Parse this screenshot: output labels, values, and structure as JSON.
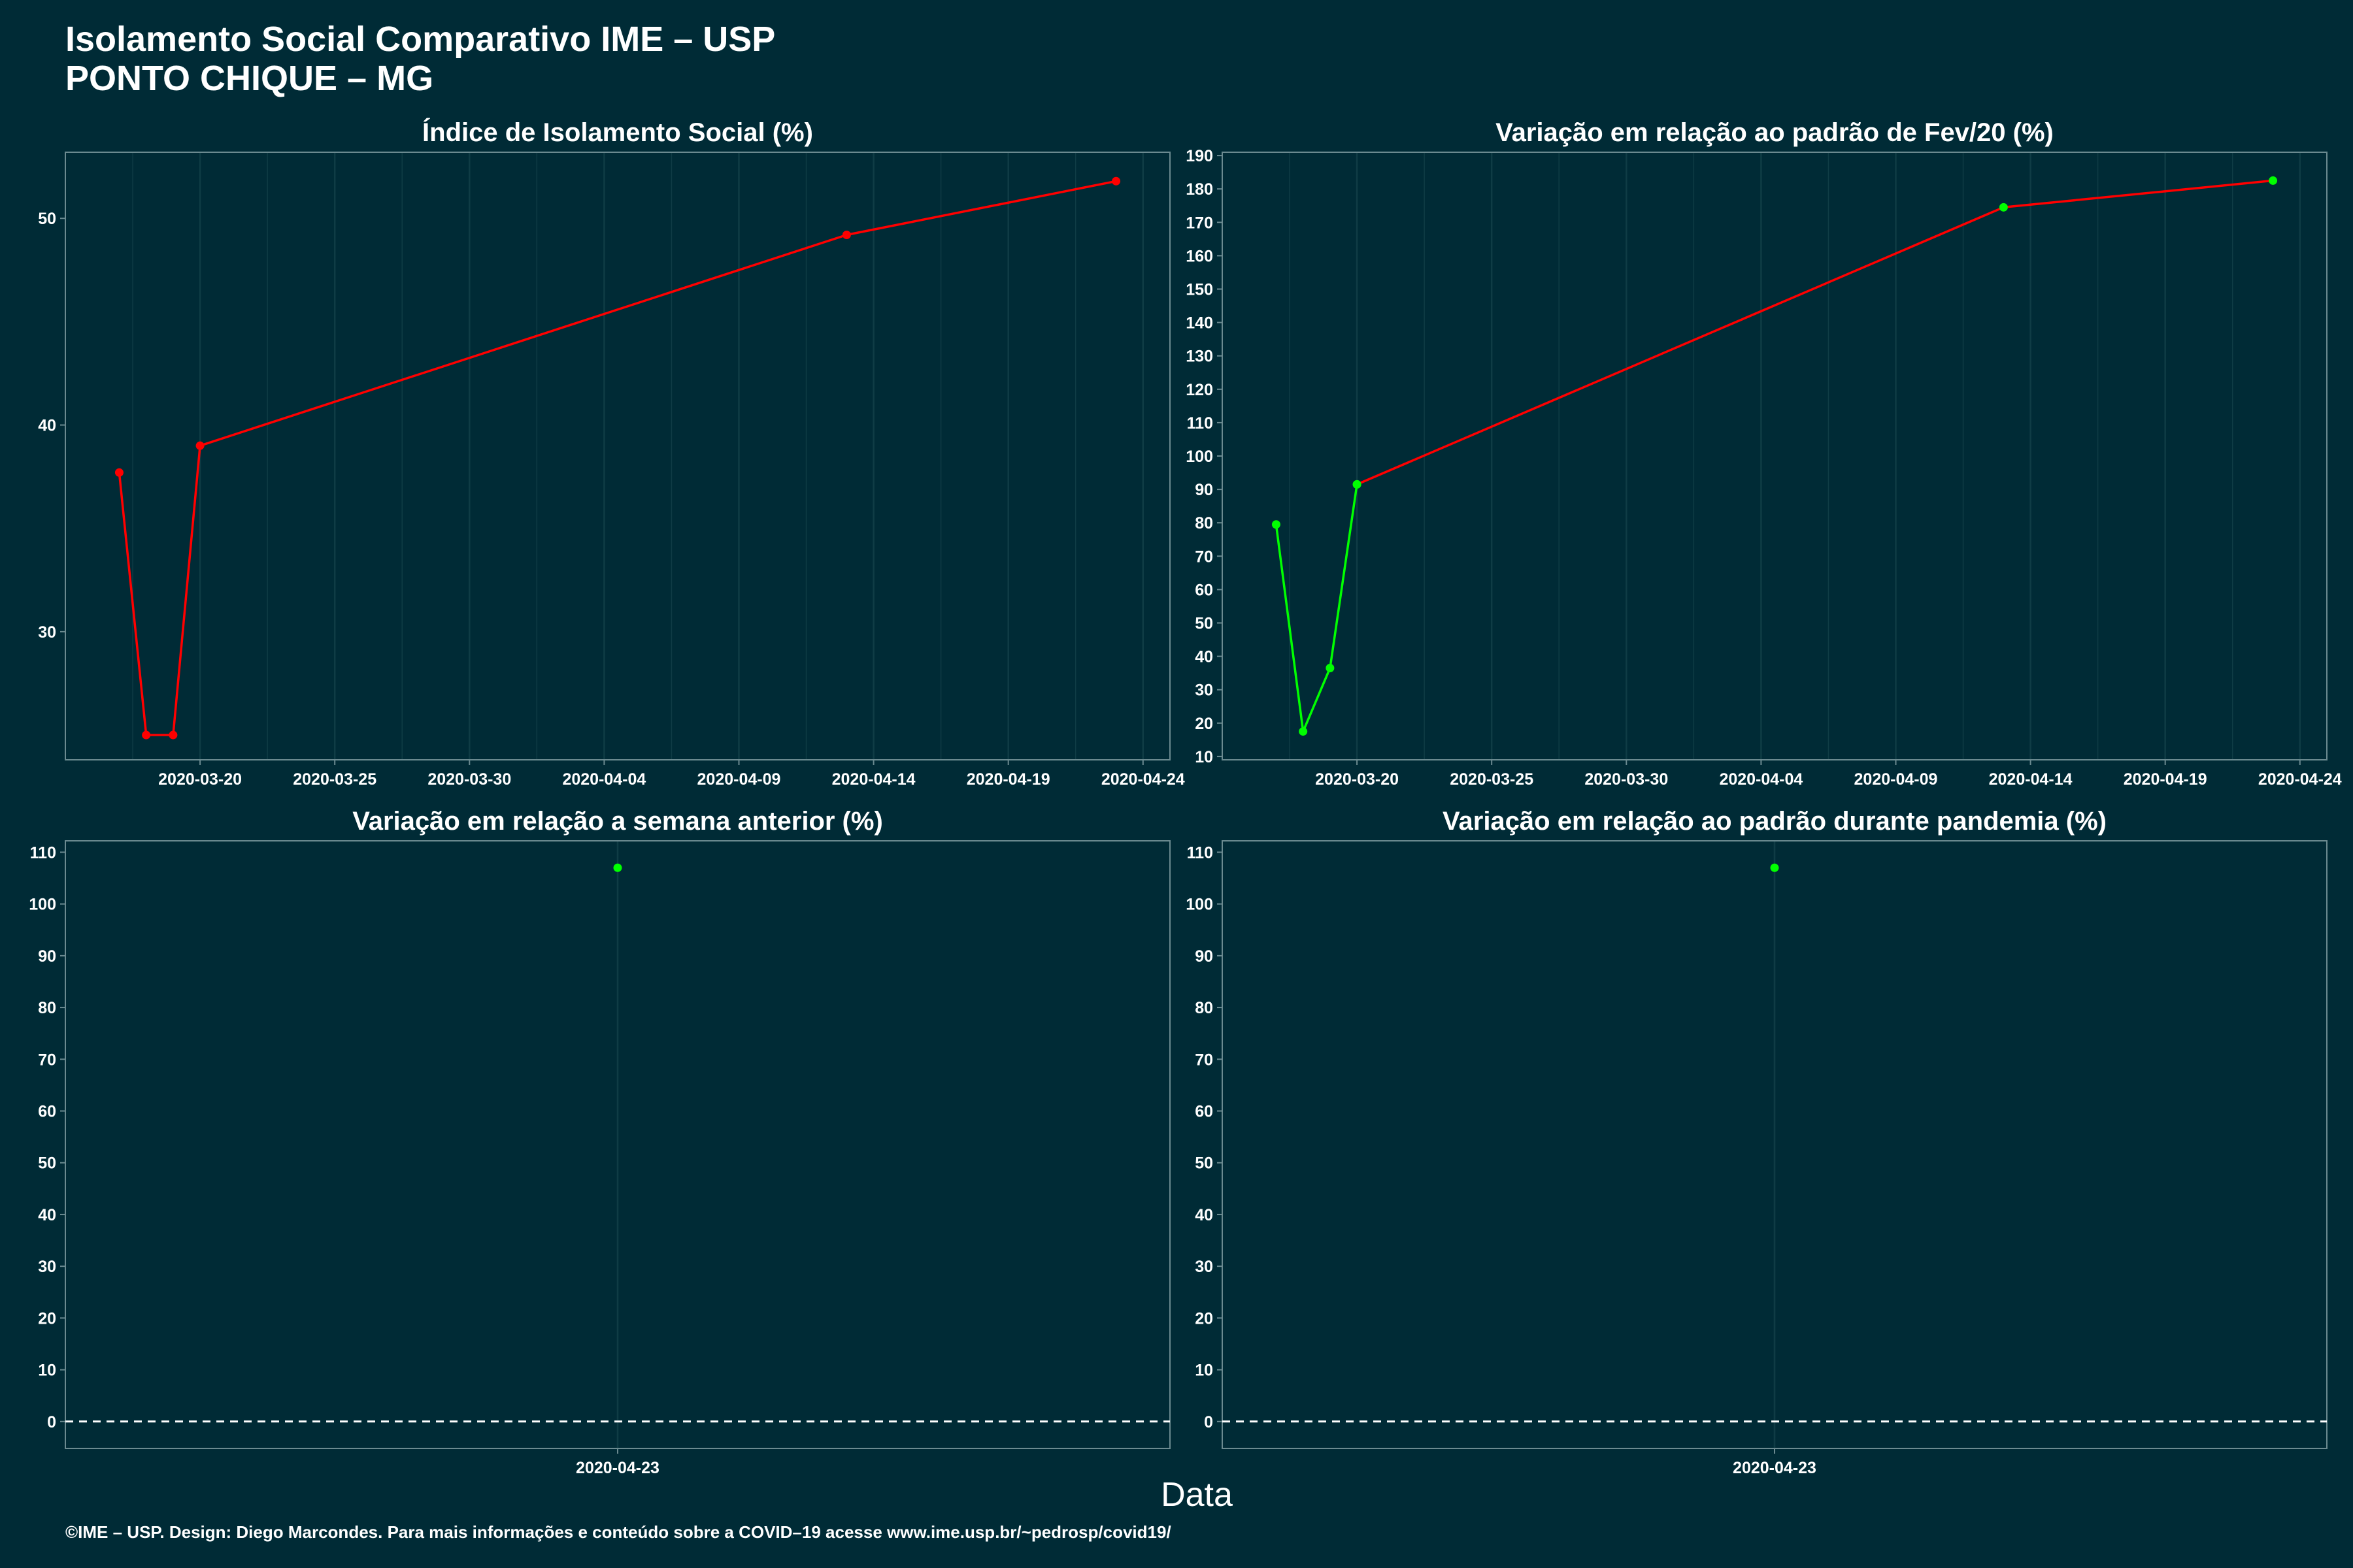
{
  "header": {
    "title_line1": "Isolamento Social Comparativo IME – USP",
    "title_line2": "PONTO CHIQUE – MG"
  },
  "xlabel": "Data",
  "footer": "©IME – USP. Design: Diego Marcondes. Para mais informações e conteúdo sobre a COVID–19 acesse www.ime.usp.br/~pedrosp/covid19/",
  "colors": {
    "background": "#002b36",
    "grid": "#0f3c45",
    "frame": "#6b8a90",
    "red": "#ff0000",
    "green": "#00ff00",
    "white": "#ffffff"
  },
  "chart_data": [
    {
      "type": "line",
      "title": "Índice de Isolamento Social (%)",
      "xlabel": "Data",
      "ylabel": "",
      "x_ticks": [
        "2020-03-20",
        "2020-03-25",
        "2020-03-30",
        "2020-04-04",
        "2020-04-09",
        "2020-04-14",
        "2020-04-19",
        "2020-04-24"
      ],
      "y_ticks": [
        30,
        40,
        50
      ],
      "xlim": [
        "2020-03-15",
        "2020-04-25"
      ],
      "ylim": [
        23.8,
        53.2
      ],
      "grid": true,
      "series": [
        {
          "color": "#ff0000",
          "x": [
            "2020-03-17",
            "2020-03-18",
            "2020-03-19",
            "2020-03-20",
            "2020-04-13",
            "2020-04-23"
          ],
          "values": [
            37.7,
            25.0,
            25.0,
            39.0,
            49.2,
            51.8
          ]
        }
      ]
    },
    {
      "type": "line",
      "title": "Variação em relação ao padrão de Fev/20 (%)",
      "xlabel": "Data",
      "ylabel": "",
      "x_ticks": [
        "2020-03-20",
        "2020-03-25",
        "2020-03-30",
        "2020-04-04",
        "2020-04-09",
        "2020-04-14",
        "2020-04-19",
        "2020-04-24"
      ],
      "y_ticks": [
        10,
        20,
        30,
        40,
        50,
        60,
        70,
        80,
        90,
        100,
        110,
        120,
        130,
        140,
        150,
        160,
        170,
        180,
        190
      ],
      "xlim": [
        "2020-03-15",
        "2020-04-25"
      ],
      "ylim": [
        9,
        191
      ],
      "grid": true,
      "series": [
        {
          "color": "#00ff00",
          "x": [
            "2020-03-17",
            "2020-03-18",
            "2020-03-19",
            "2020-03-20"
          ],
          "values": [
            79.5,
            17.5,
            36.5,
            91.5
          ]
        },
        {
          "color": "#ff0000",
          "x": [
            "2020-03-20",
            "2020-04-13",
            "2020-04-23"
          ],
          "values": [
            91.5,
            174.5,
            182.5
          ]
        }
      ],
      "point_color": "#00ff00"
    },
    {
      "type": "scatter",
      "title": "Variação em relação a semana anterior (%)",
      "xlabel": "Data",
      "ylabel": "",
      "x_ticks": [
        "2020-04-23"
      ],
      "y_ticks": [
        0,
        10,
        20,
        30,
        40,
        50,
        60,
        70,
        80,
        90,
        100,
        110
      ],
      "ylim": [
        -5.2,
        112.2
      ],
      "grid": true,
      "reference_line": 0,
      "series": [
        {
          "color": "#00ff00",
          "x": [
            "2020-04-23"
          ],
          "values": [
            107
          ]
        }
      ]
    },
    {
      "type": "scatter",
      "title": "Variação em relação ao padrão durante pandemia (%)",
      "xlabel": "Data",
      "ylabel": "",
      "x_ticks": [
        "2020-04-23"
      ],
      "y_ticks": [
        0,
        10,
        20,
        30,
        40,
        50,
        60,
        70,
        80,
        90,
        100,
        110
      ],
      "ylim": [
        -5.2,
        112.2
      ],
      "grid": true,
      "reference_line": 0,
      "series": [
        {
          "color": "#00ff00",
          "x": [
            "2020-04-23"
          ],
          "values": [
            107
          ]
        }
      ]
    }
  ]
}
